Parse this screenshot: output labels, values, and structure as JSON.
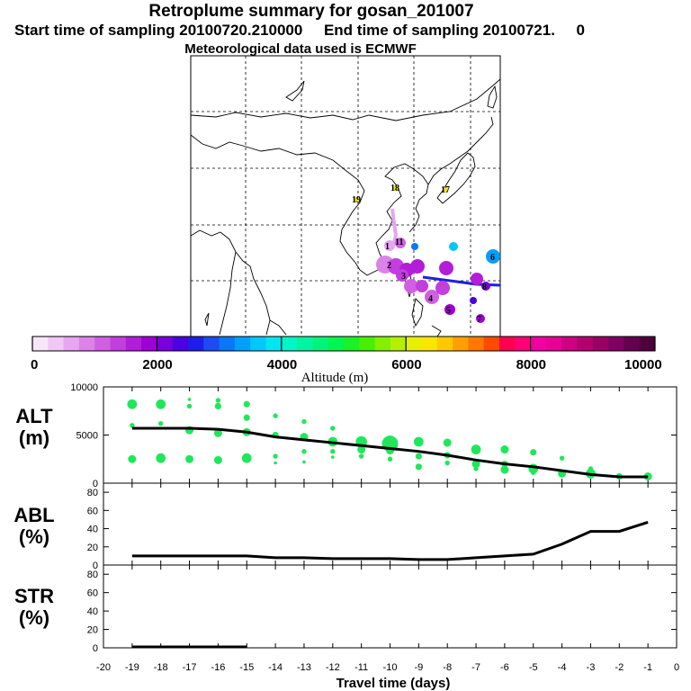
{
  "header": {
    "title": "Retroplume summary for gosan_201007",
    "subtitle": "Start time of sampling 20100720.210000     End time of sampling 20100721.     0",
    "met": "Meteorological data used is ECMWF"
  },
  "colorbar": {
    "label": "Altitude (m)",
    "ticks": [
      "0",
      "2000",
      "4000",
      "6000",
      "8000",
      "10000"
    ],
    "colors": [
      "#f7e6fa",
      "#f0c8f5",
      "#e6a6f0",
      "#dc82ea",
      "#d05fe4",
      "#c33ede",
      "#b21ed8",
      "#9d00d4",
      "#7800dc",
      "#4b00e0",
      "#1e1ee6",
      "#1e4bf0",
      "#0a78f5",
      "#00a0fa",
      "#00c8fa",
      "#00e6f0",
      "#00f5c8",
      "#00f5a0",
      "#00f578",
      "#00f550",
      "#1ef028",
      "#46f000",
      "#82f000",
      "#b4f000",
      "#e6f000",
      "#fae600",
      "#ffc800",
      "#ffa000",
      "#ff7800",
      "#ff4b00",
      "#ff0050",
      "#ff0078",
      "#f000a0",
      "#e60096",
      "#cc0080",
      "#b4006e",
      "#9a0064",
      "#800060",
      "#640050",
      "#50003c"
    ]
  },
  "map": {
    "labels": [
      "19",
      "18",
      "17",
      "11",
      "2",
      "3",
      "4",
      "5",
      "6",
      "7",
      "8",
      "1"
    ]
  },
  "chart_data": [
    {
      "type": "line",
      "panel": "ALT",
      "ylabel_line1": "ALT",
      "ylabel_line2": "(m)",
      "ylim": [
        0,
        10000
      ],
      "yticks": [
        "10000",
        "5000",
        "0"
      ],
      "x": [
        -19,
        -18,
        -17,
        -16,
        -15,
        -14,
        -13,
        -12,
        -11,
        -10,
        -9,
        -8,
        -7,
        -6,
        -5,
        -4,
        -3,
        -2,
        -1
      ],
      "values": [
        5700,
        5700,
        5700,
        5600,
        5300,
        4800,
        4500,
        4200,
        3900,
        3600,
        3300,
        2900,
        2400,
        2000,
        1700,
        1300,
        900,
        650,
        650
      ],
      "plume_points": [
        {
          "x": -19,
          "y": 8200,
          "s": 6
        },
        {
          "x": -19,
          "y": 6000,
          "s": 3
        },
        {
          "x": -19,
          "y": 2500,
          "s": 5
        },
        {
          "x": -18,
          "y": 8200,
          "s": 6
        },
        {
          "x": -18,
          "y": 6200,
          "s": 3
        },
        {
          "x": -18,
          "y": 2600,
          "s": 6
        },
        {
          "x": -17,
          "y": 8700,
          "s": 2
        },
        {
          "x": -17,
          "y": 8000,
          "s": 3
        },
        {
          "x": -17,
          "y": 5500,
          "s": 5
        },
        {
          "x": -17,
          "y": 2500,
          "s": 5
        },
        {
          "x": -16,
          "y": 8600,
          "s": 3
        },
        {
          "x": -16,
          "y": 8000,
          "s": 4
        },
        {
          "x": -16,
          "y": 5200,
          "s": 5
        },
        {
          "x": -16,
          "y": 2400,
          "s": 5
        },
        {
          "x": -15,
          "y": 8200,
          "s": 4
        },
        {
          "x": -15,
          "y": 6800,
          "s": 4
        },
        {
          "x": -15,
          "y": 5300,
          "s": 5
        },
        {
          "x": -15,
          "y": 2600,
          "s": 6
        },
        {
          "x": -14,
          "y": 7000,
          "s": 3
        },
        {
          "x": -14,
          "y": 5000,
          "s": 4
        },
        {
          "x": -14,
          "y": 2800,
          "s": 3
        },
        {
          "x": -14,
          "y": 2100,
          "s": 2
        },
        {
          "x": -13,
          "y": 6400,
          "s": 3
        },
        {
          "x": -13,
          "y": 4800,
          "s": 5
        },
        {
          "x": -13,
          "y": 3300,
          "s": 3
        },
        {
          "x": -13,
          "y": 2200,
          "s": 2
        },
        {
          "x": -12,
          "y": 5700,
          "s": 3
        },
        {
          "x": -12,
          "y": 4300,
          "s": 6
        },
        {
          "x": -12,
          "y": 3300,
          "s": 3
        },
        {
          "x": -12,
          "y": 2700,
          "s": 2
        },
        {
          "x": -11,
          "y": 4300,
          "s": 7
        },
        {
          "x": -11,
          "y": 3500,
          "s": 5
        },
        {
          "x": -11,
          "y": 2800,
          "s": 3
        },
        {
          "x": -10,
          "y": 4100,
          "s": 10
        },
        {
          "x": -10,
          "y": 3400,
          "s": 5
        },
        {
          "x": -10,
          "y": 2500,
          "s": 3
        },
        {
          "x": -9,
          "y": 4300,
          "s": 6
        },
        {
          "x": -9,
          "y": 2800,
          "s": 4
        },
        {
          "x": -9,
          "y": 1700,
          "s": 4
        },
        {
          "x": -8,
          "y": 4200,
          "s": 5
        },
        {
          "x": -8,
          "y": 2900,
          "s": 4
        },
        {
          "x": -8,
          "y": 2100,
          "s": 3
        },
        {
          "x": -7,
          "y": 3500,
          "s": 6
        },
        {
          "x": -7,
          "y": 2000,
          "s": 5
        },
        {
          "x": -7,
          "y": 1500,
          "s": 3
        },
        {
          "x": -6,
          "y": 3500,
          "s": 5
        },
        {
          "x": -6,
          "y": 2000,
          "s": 4
        },
        {
          "x": -6,
          "y": 1400,
          "s": 5
        },
        {
          "x": -5,
          "y": 3200,
          "s": 4
        },
        {
          "x": -5,
          "y": 1500,
          "s": 6
        },
        {
          "x": -5,
          "y": 1100,
          "s": 3
        },
        {
          "x": -4,
          "y": 2600,
          "s": 3
        },
        {
          "x": -4,
          "y": 1000,
          "s": 5
        },
        {
          "x": -3,
          "y": 1500,
          "s": 3
        },
        {
          "x": -3,
          "y": 1000,
          "s": 6
        },
        {
          "x": -2,
          "y": 700,
          "s": 4
        },
        {
          "x": -1,
          "y": 700,
          "s": 5
        }
      ]
    },
    {
      "type": "line",
      "panel": "ABL",
      "ylabel_line1": "ABL",
      "ylabel_line2": "(%)",
      "ylim": [
        0,
        90
      ],
      "yticks": [
        "80",
        "60",
        "40",
        "20",
        "0"
      ],
      "x": [
        -19,
        -18,
        -17,
        -16,
        -15,
        -14,
        -13,
        -12,
        -11,
        -10,
        -9,
        -8,
        -7,
        -6,
        -5,
        -4,
        -3,
        -2,
        -1
      ],
      "values": [
        10,
        10,
        10,
        10,
        10,
        8,
        8,
        7,
        7,
        7,
        6,
        6,
        8,
        10,
        12,
        23,
        37,
        37,
        47
      ]
    },
    {
      "type": "line",
      "panel": "STR",
      "ylabel_line1": "STR",
      "ylabel_line2": "(%)",
      "ylim": [
        0,
        90
      ],
      "yticks": [
        "80",
        "60",
        "40",
        "20",
        "0"
      ],
      "x": [
        -19,
        -18,
        -17,
        -16,
        -15
      ],
      "values": [
        1,
        1,
        1,
        1,
        1
      ]
    }
  ],
  "xaxis": {
    "label": "Travel time (days)",
    "ticks": [
      "-20",
      "-19",
      "-18",
      "-17",
      "-16",
      "-15",
      "-14",
      "-13",
      "-12",
      "-11",
      "-10",
      "-9",
      "-8",
      "-7",
      "-6",
      "-5",
      "-4",
      "-3",
      "-2",
      "-1",
      "0"
    ]
  }
}
